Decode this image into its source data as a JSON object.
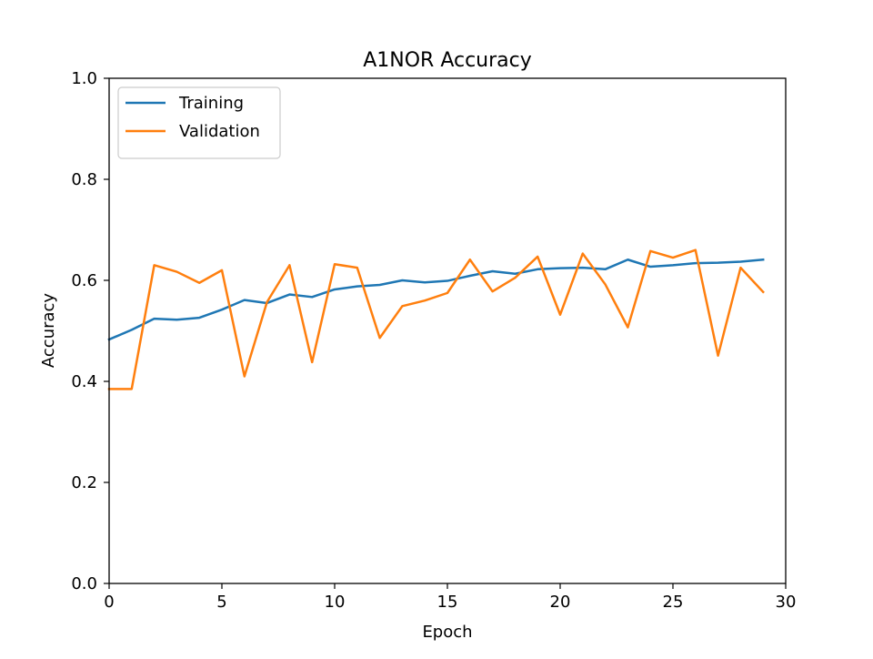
{
  "chart_data": {
    "type": "line",
    "title": "A1NOR Accuracy",
    "xlabel": "Epoch",
    "ylabel": "Accuracy",
    "xlim": [
      0,
      30
    ],
    "ylim": [
      0,
      1.0
    ],
    "x_ticks": [
      0,
      5,
      10,
      15,
      20,
      25,
      30
    ],
    "y_ticks": [
      0.0,
      0.2,
      0.4,
      0.6,
      0.8,
      1.0
    ],
    "x_tick_labels": [
      "0",
      "5",
      "10",
      "15",
      "20",
      "25",
      "30"
    ],
    "y_tick_labels": [
      "0.0",
      "0.2",
      "0.4",
      "0.6",
      "0.8",
      "1.0"
    ],
    "grid": false,
    "legend_position": "top-left",
    "x": [
      0,
      1,
      2,
      3,
      4,
      5,
      6,
      7,
      8,
      9,
      10,
      11,
      12,
      13,
      14,
      15,
      16,
      17,
      18,
      19,
      20,
      21,
      22,
      23,
      24,
      25,
      26,
      27,
      28,
      29
    ],
    "series": [
      {
        "name": "Training",
        "color": "#1f77b4",
        "values": [
          0.483,
          0.502,
          0.524,
          0.522,
          0.526,
          0.542,
          0.561,
          0.555,
          0.572,
          0.567,
          0.582,
          0.588,
          0.591,
          0.6,
          0.596,
          0.599,
          0.609,
          0.618,
          0.613,
          0.622,
          0.624,
          0.625,
          0.622,
          0.641,
          0.627,
          0.63,
          0.634,
          0.635,
          0.637,
          0.641
        ]
      },
      {
        "name": "Validation",
        "color": "#ff7f0e",
        "values": [
          0.385,
          0.385,
          0.63,
          0.617,
          0.595,
          0.62,
          0.41,
          0.557,
          0.63,
          0.438,
          0.632,
          0.625,
          0.486,
          0.549,
          0.56,
          0.575,
          0.641,
          0.578,
          0.605,
          0.647,
          0.532,
          0.653,
          0.592,
          0.507,
          0.658,
          0.645,
          0.66,
          0.451,
          0.625,
          0.577
        ]
      }
    ]
  }
}
